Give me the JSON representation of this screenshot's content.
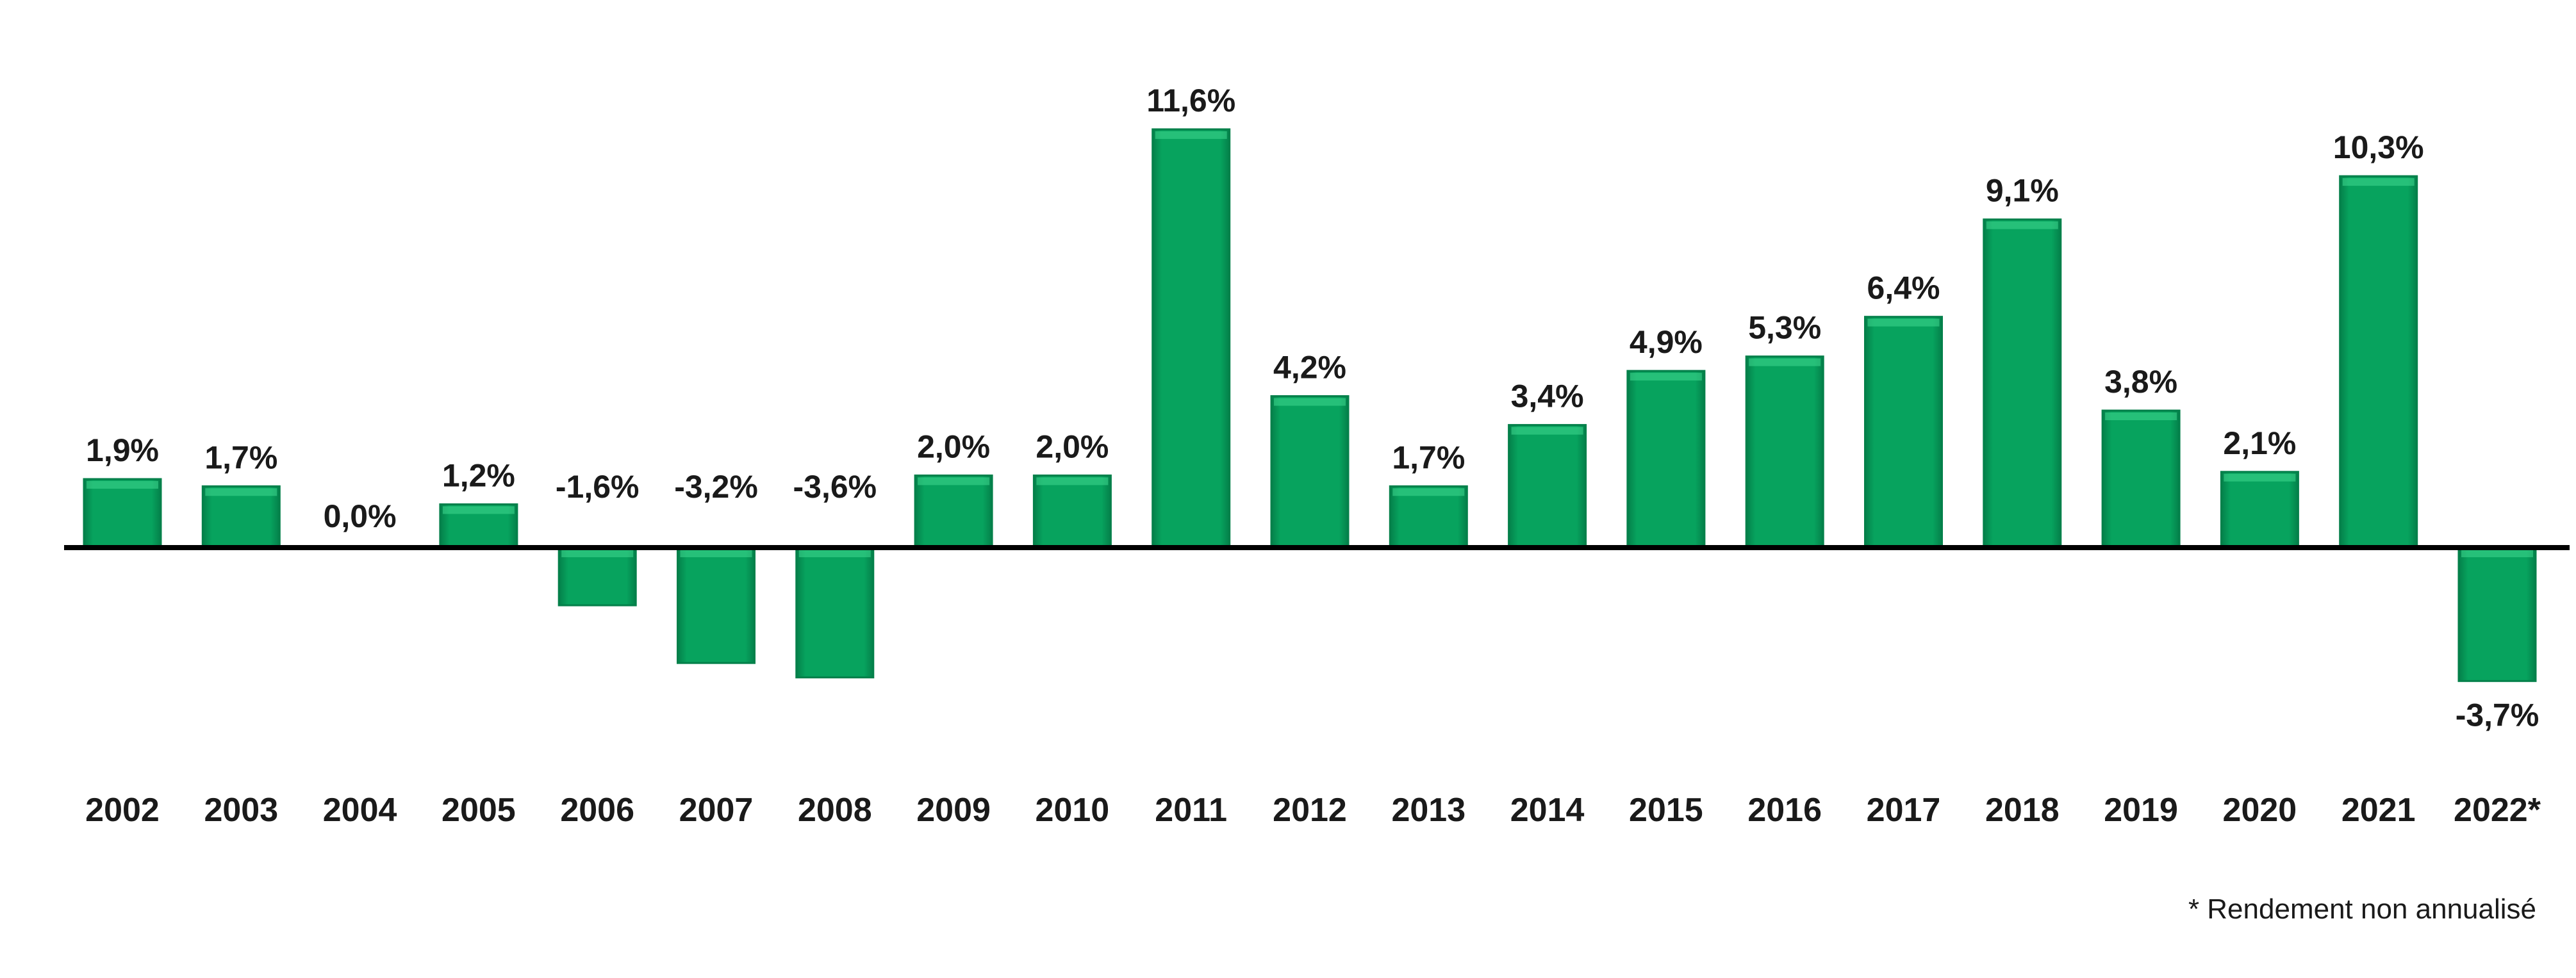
{
  "chart_data": {
    "type": "bar",
    "categories": [
      "2002",
      "2003",
      "2004",
      "2005",
      "2006",
      "2007",
      "2008",
      "2009",
      "2010",
      "2011",
      "2012",
      "2013",
      "2014",
      "2015",
      "2016",
      "2017",
      "2018",
      "2019",
      "2020",
      "2021",
      "2022*"
    ],
    "values": [
      1.9,
      1.7,
      0.0,
      1.2,
      -1.6,
      -3.2,
      -3.6,
      2.0,
      2.0,
      11.6,
      4.2,
      1.7,
      3.4,
      4.9,
      5.3,
      6.4,
      9.1,
      3.8,
      2.1,
      10.3,
      -3.7
    ],
    "data_labels": [
      "1,9%",
      "1,7%",
      "0,0%",
      "1,2%",
      "-1,6%",
      "-3,2%",
      "-3,6%",
      "2,0%",
      "2,0%",
      "11,6%",
      "4,2%",
      "1,7%",
      "3,4%",
      "4,9%",
      "5,3%",
      "6,4%",
      "9,1%",
      "3,8%",
      "2,1%",
      "10,3%",
      "-3,7%"
    ],
    "title": "",
    "xlabel": "",
    "ylabel": "",
    "ylim": [
      -4.5,
      13.5
    ],
    "grid": false,
    "legend": "none",
    "colors": {
      "bar": "#07a35e",
      "bar_dark": "#04804a",
      "bar_light": "#3fd98f",
      "axis": "#000000"
    },
    "footnote": "* Rendement non annualisé"
  }
}
